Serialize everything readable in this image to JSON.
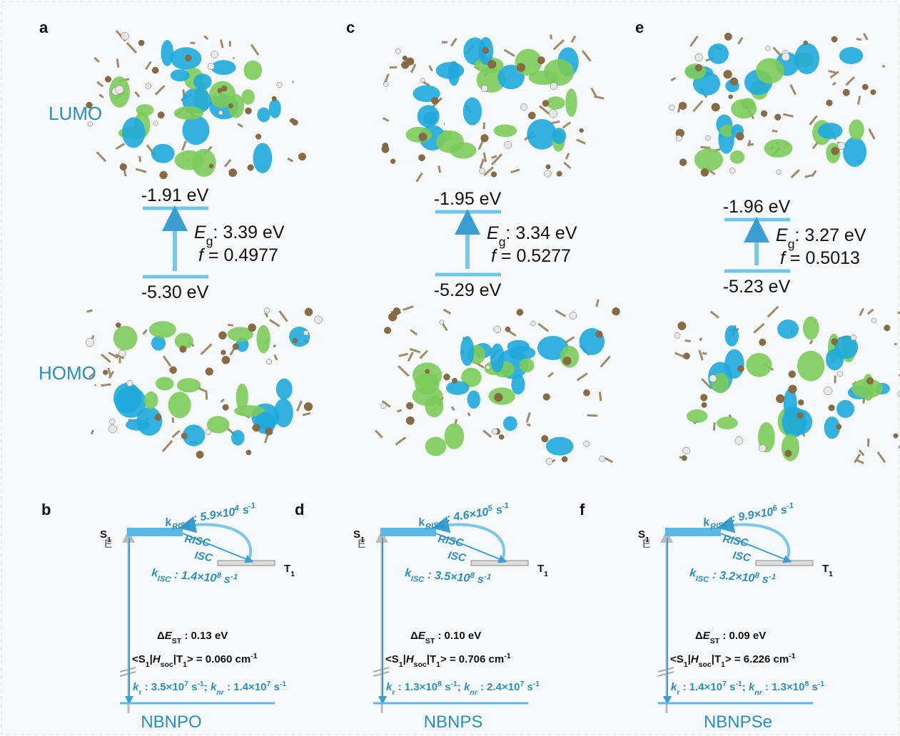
{
  "labels": {
    "lumo": "LUMO",
    "homo": "HOMO"
  },
  "panels": [
    {
      "top_letter": "a",
      "lumo_energy": "-1.91 eV",
      "gap": [
        "E",
        "g",
        ": 3.39 eV"
      ],
      "osc": [
        "f",
        " = 0.4977"
      ],
      "homo_energy": "-5.30 eV",
      "bottom_letter": "b",
      "energy_axis": "E",
      "s1": [
        "S",
        "1"
      ],
      "t1": [
        "T",
        "1"
      ],
      "k_risc": [
        "k",
        "RISC",
        " : 5.9×10",
        "4",
        " s",
        "-1"
      ],
      "risc": "RISC",
      "isc": "ISC",
      "k_isc": [
        "k",
        "ISC",
        " : 1.4×10",
        "8",
        " s",
        "-1"
      ],
      "delta_est": [
        "Δ",
        "E",
        "ST",
        " : 0.13 eV"
      ],
      "soc": [
        "<S",
        "1",
        "|",
        "H",
        "soc",
        "|T",
        "1",
        "> = 0.060 cm",
        "-1"
      ],
      "rates": [
        "k",
        "r",
        " : 3.5×10",
        "7",
        " s",
        "-1",
        ";  ",
        "k",
        "nr",
        " : 1.4×10",
        "7",
        " s",
        "-1"
      ],
      "name": "NBNPO"
    },
    {
      "top_letter": "c",
      "lumo_energy": "-1.95 eV",
      "gap": [
        "E",
        "g",
        ": 3.34 eV"
      ],
      "osc": [
        "f",
        " = 0.5277"
      ],
      "homo_energy": "-5.29 eV",
      "bottom_letter": "d",
      "energy_axis": "E",
      "s1": [
        "S",
        "1"
      ],
      "t1": [
        "T",
        "1"
      ],
      "k_risc": [
        "k",
        "RISC",
        " : 4.6×10",
        "5",
        " s",
        "-1"
      ],
      "risc": "RISC",
      "isc": "ISC",
      "k_isc": [
        "k",
        "ISC",
        " : 3.5×10",
        "8",
        " s",
        "-1"
      ],
      "delta_est": [
        "Δ",
        "E",
        "ST",
        " : 0.10 eV"
      ],
      "soc": [
        "<S",
        "1",
        "|",
        "H",
        "soc",
        "|T",
        "1",
        "> = 0.706 cm",
        "-1"
      ],
      "rates": [
        "k",
        "r",
        " : 1.3×10",
        "8",
        " s",
        "-1",
        ";  ",
        "k",
        "nr",
        " : 2.4×10",
        "7",
        " s",
        "-1"
      ],
      "name": "NBNPS"
    },
    {
      "top_letter": "e",
      "lumo_energy": "-1.96 eV",
      "gap": [
        "E",
        "g",
        ": 3.27 eV"
      ],
      "osc": [
        "f",
        " = 0.5013"
      ],
      "homo_energy": "-5.23 eV",
      "bottom_letter": "f",
      "energy_axis": "E",
      "s1": [
        "S",
        "1"
      ],
      "t1": [
        "T",
        "1"
      ],
      "k_risc": [
        "k",
        "RISC",
        " : 9.9×10",
        "6",
        " s",
        "-1"
      ],
      "risc": "RISC",
      "isc": "ISC",
      "k_isc": [
        "k",
        "ISC",
        " : 3.2×10",
        "8",
        " s",
        "-1"
      ],
      "delta_est": [
        "Δ",
        "E",
        "ST",
        " : 0.09 eV"
      ],
      "soc": [
        "<S",
        "1",
        "|",
        "H",
        "soc",
        "|T",
        "1",
        "> = 6.226 cm",
        "-1"
      ],
      "rates": [
        "k",
        "r",
        " : 1.4×10",
        "7",
        " s",
        "-1",
        ";  ",
        "k",
        "nr",
        " : 1.3×10",
        "8",
        " s",
        "-1"
      ],
      "name": "NBNPSe"
    }
  ]
}
